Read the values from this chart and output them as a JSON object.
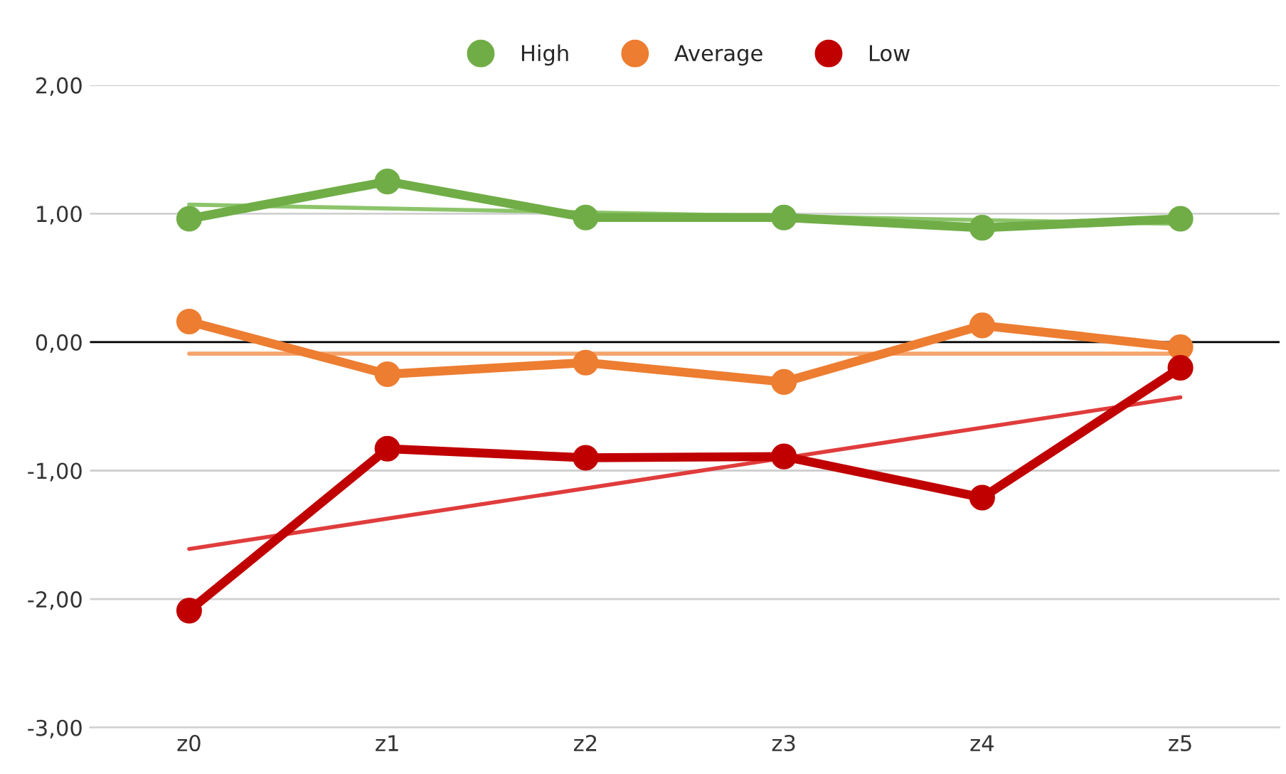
{
  "chart_data": {
    "type": "line",
    "categories": [
      "z0",
      "z1",
      "z2",
      "z3",
      "z4",
      "z5"
    ],
    "series": [
      {
        "type": "line",
        "x": [
          "z0",
          "z5"
        ],
        "values": [
          1.07,
          0.92
        ],
        "color": "#8cc46a",
        "marker": "none"
      },
      {
        "type": "line",
        "x": [
          "z0",
          "z5"
        ],
        "values": [
          -0.09,
          -0.09
        ],
        "color": "#f4a46c",
        "marker": "none"
      },
      {
        "type": "line",
        "x": [
          "z0",
          "z5"
        ],
        "values": [
          -1.61,
          -0.43
        ],
        "color": "#e03c3c",
        "marker": "none"
      },
      {
        "name": "High",
        "color": "#70ad47",
        "values": [
          0.96,
          1.25,
          0.97,
          0.97,
          0.89,
          0.96
        ]
      },
      {
        "name": "Average",
        "color": "#ed7d31",
        "values": [
          0.16,
          -0.25,
          -0.16,
          -0.31,
          0.13,
          -0.04
        ]
      },
      {
        "name": "Low",
        "color": "#c00000",
        "values": [
          -2.09,
          -0.83,
          -0.9,
          -0.89,
          -1.21,
          -0.2
        ]
      }
    ],
    "ylim": [
      -3,
      2
    ],
    "yticks": [
      {
        "value": -3,
        "label": "-3,00"
      },
      {
        "value": -2,
        "label": "-2,00"
      },
      {
        "value": -1,
        "label": "-1,00"
      },
      {
        "value": 0,
        "label": "0,00"
      },
      {
        "value": 1,
        "label": "1,00"
      },
      {
        "value": 2,
        "label": "2,00"
      }
    ],
    "ref_lines": [
      {
        "axis": "y",
        "value": 0,
        "color": "#000000"
      }
    ],
    "grid": "y",
    "legend": "top",
    "marker": "circle",
    "line_style": "solid"
  }
}
